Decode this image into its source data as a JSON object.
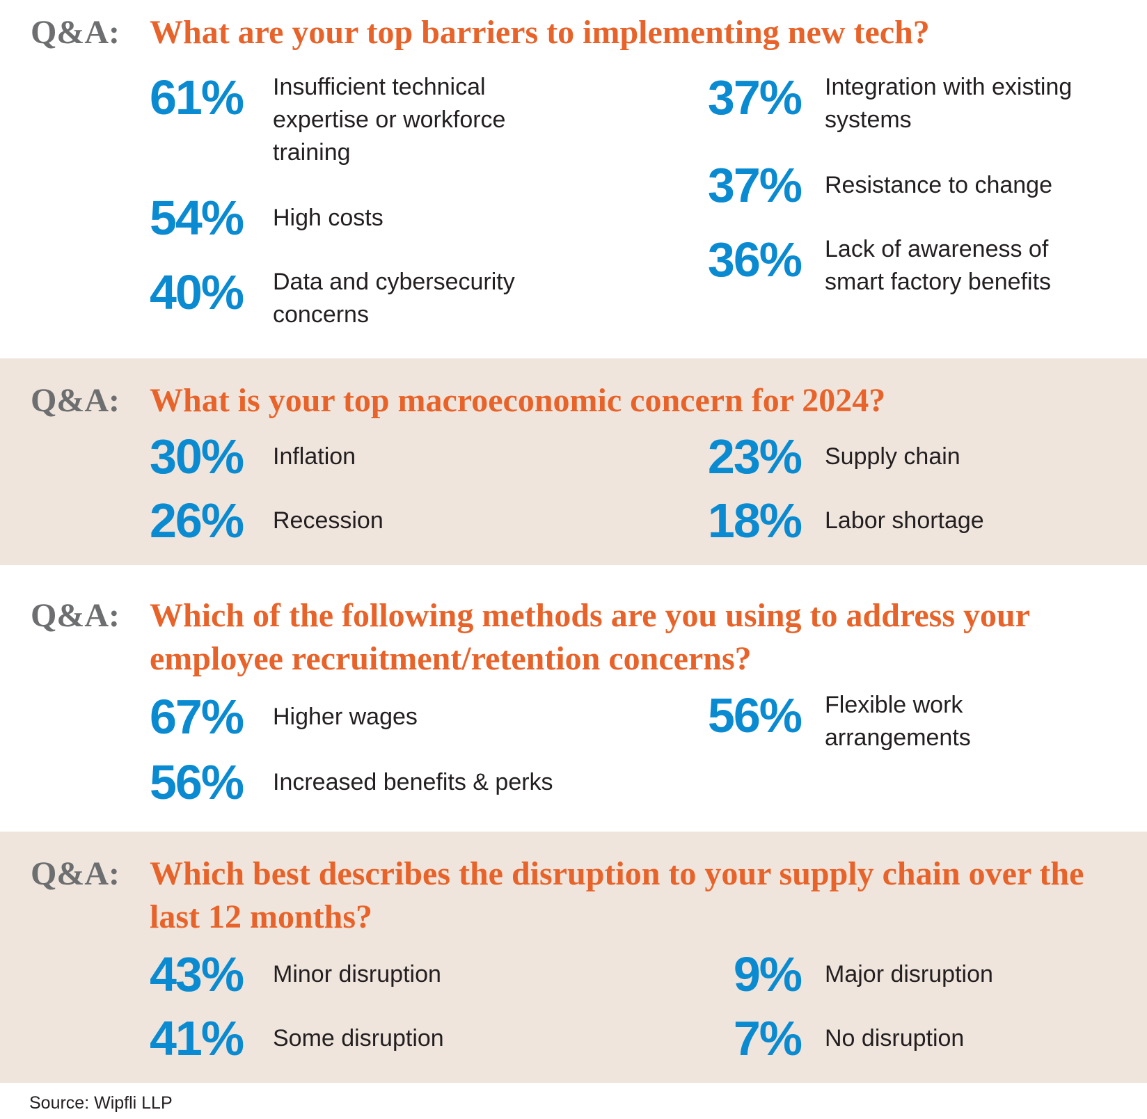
{
  "sections": [
    {
      "label": "Q&A:",
      "title": "What are your top barriers to implementing new tech?",
      "left": [
        {
          "value": "61%",
          "text": "Insufficient technical expertise or workforce training"
        },
        {
          "value": "54%",
          "text": "High costs"
        },
        {
          "value": "40%",
          "text": "Data and cybersecurity concerns"
        }
      ],
      "right": [
        {
          "value": "37%",
          "text": "Integration with existing systems"
        },
        {
          "value": "37%",
          "text": "Resistance to change"
        },
        {
          "value": "36%",
          "text": "Lack of awareness of smart factory benefits"
        }
      ]
    },
    {
      "label": "Q&A:",
      "title": "What is your top macroeconomic concern for 2024?",
      "left": [
        {
          "value": "30%",
          "text": "Inflation"
        },
        {
          "value": "26%",
          "text": "Recession"
        }
      ],
      "right": [
        {
          "value": "23%",
          "text": "Supply chain"
        },
        {
          "value": "18%",
          "text": "Labor shortage"
        }
      ]
    },
    {
      "label": "Q&A:",
      "title": "Which of the following methods are you using to address your employee recruitment/retention concerns?",
      "left": [
        {
          "value": "67%",
          "text": "Higher wages"
        },
        {
          "value": "56%",
          "text": "Increased benefits & perks"
        }
      ],
      "right": [
        {
          "value": "56%",
          "text": "Flexible work arrangements"
        }
      ]
    },
    {
      "label": "Q&A:",
      "title": "Which best describes the disruption to your supply chain over the last 12 months?",
      "left": [
        {
          "value": "43%",
          "text": "Minor disruption"
        },
        {
          "value": "41%",
          "text": "Some disruption"
        }
      ],
      "right": [
        {
          "value": "9%",
          "text": "Major disruption"
        },
        {
          "value": "7%",
          "text": "No disruption"
        }
      ]
    }
  ],
  "source": "Source: Wipfli LLP"
}
